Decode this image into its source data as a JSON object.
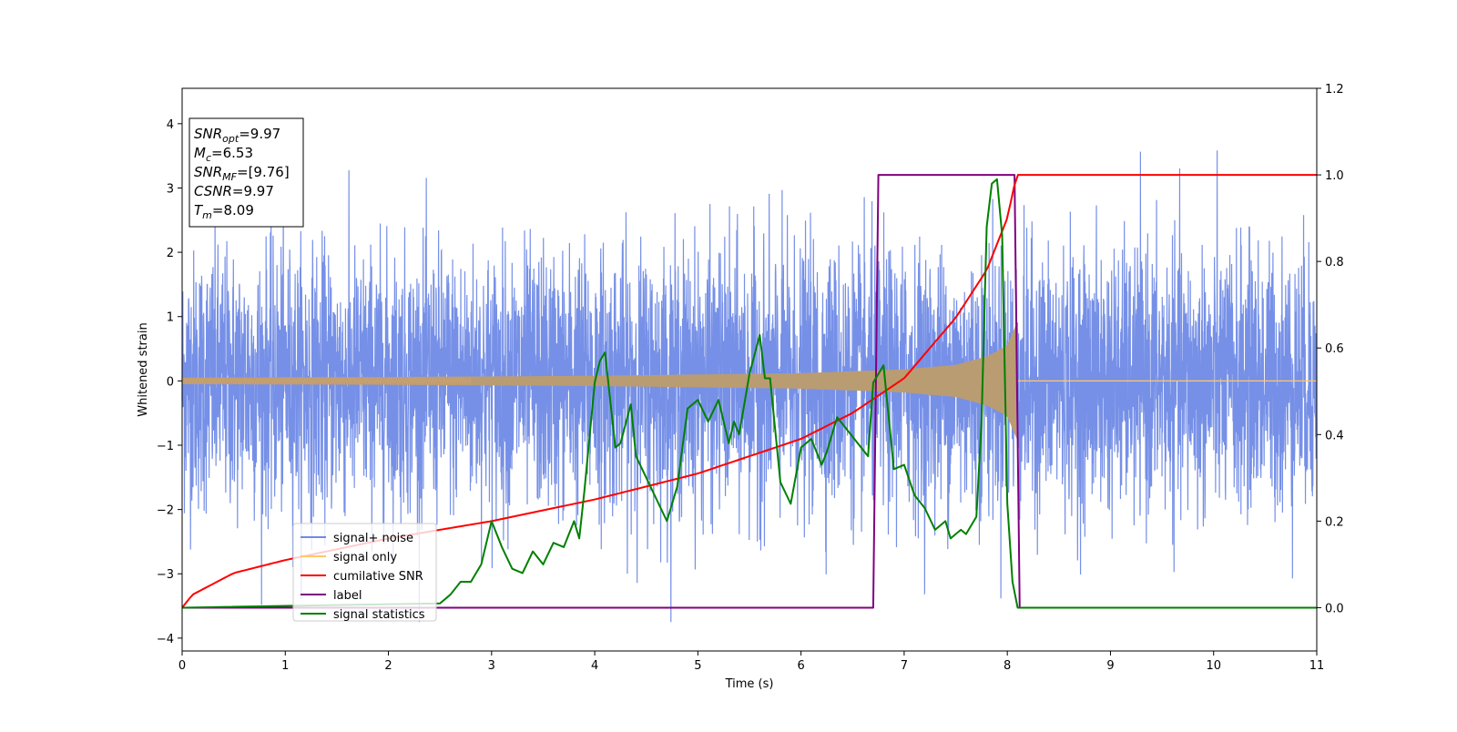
{
  "chart_data": {
    "type": "line",
    "xlabel": "Time (s)",
    "ylabel": "Whitened strain",
    "xlim": [
      0,
      11
    ],
    "ylim_left": [
      -4.2,
      4.55
    ],
    "ylim_right": [
      -0.1,
      1.2
    ],
    "x_ticks": [
      0,
      1,
      2,
      3,
      4,
      5,
      6,
      7,
      8,
      9,
      10,
      11
    ],
    "y_ticks_left": [
      -4,
      -3,
      -2,
      -1,
      0,
      1,
      2,
      3,
      4
    ],
    "y_ticks_right": [
      0.0,
      0.2,
      0.4,
      0.6,
      0.8,
      1.0,
      1.2
    ],
    "grid": false,
    "legend_position": "lower-left",
    "colors": {
      "signal_noise": "#6f8ae6",
      "signal_only": "#ffc766",
      "cumulative_snr": "#ff0000",
      "label": "#800080",
      "statistics": "#008000"
    },
    "series": [
      {
        "name": "signal+ noise",
        "axis": "left",
        "description_type": "gaussian noise, sigma≈1.0, 0–11 s"
      },
      {
        "name": "signal only",
        "axis": "left",
        "chirp_amplitude": {
          "x": [
            0,
            2,
            4,
            6,
            7,
            7.5,
            7.8,
            8.0,
            8.09
          ],
          "y": [
            0.05,
            0.06,
            0.08,
            0.12,
            0.18,
            0.25,
            0.38,
            0.55,
            0.9
          ]
        }
      },
      {
        "name": "cumilative SNR",
        "axis": "right",
        "x": [
          0,
          0.1,
          0.5,
          1,
          2,
          3,
          4,
          5,
          6,
          6.5,
          7,
          7.5,
          7.8,
          8.0,
          8.09,
          8.1,
          11
        ],
        "y": [
          0.0,
          0.03,
          0.08,
          0.11,
          0.16,
          0.2,
          0.25,
          0.31,
          0.39,
          0.45,
          0.53,
          0.67,
          0.78,
          0.9,
          1.0,
          1.0,
          1.0
        ]
      },
      {
        "name": "label",
        "axis": "right",
        "x": [
          0,
          6.7,
          6.75,
          8.07,
          8.12,
          11
        ],
        "y": [
          0,
          0,
          1,
          1,
          0,
          0
        ]
      },
      {
        "name": "signal statistics",
        "axis": "right",
        "x": [
          0,
          2.5,
          2.6,
          2.7,
          2.8,
          2.9,
          3.0,
          3.1,
          3.2,
          3.3,
          3.4,
          3.5,
          3.6,
          3.7,
          3.8,
          3.85,
          3.9,
          4.0,
          4.05,
          4.1,
          4.2,
          4.25,
          4.35,
          4.4,
          4.5,
          4.6,
          4.7,
          4.8,
          4.9,
          5.0,
          5.1,
          5.2,
          5.3,
          5.35,
          5.4,
          5.5,
          5.6,
          5.65,
          5.7,
          5.8,
          5.9,
          6.0,
          6.1,
          6.2,
          6.25,
          6.35,
          6.45,
          6.55,
          6.65,
          6.7,
          6.8,
          6.9,
          7.0,
          7.1,
          7.2,
          7.3,
          7.4,
          7.45,
          7.55,
          7.6,
          7.7,
          7.75,
          7.8,
          7.85,
          7.9,
          7.95,
          8.0,
          8.05,
          8.1,
          8.15,
          11
        ],
        "y": [
          0.0,
          0.01,
          0.03,
          0.06,
          0.06,
          0.1,
          0.2,
          0.14,
          0.09,
          0.08,
          0.13,
          0.1,
          0.15,
          0.14,
          0.2,
          0.16,
          0.27,
          0.52,
          0.57,
          0.59,
          0.37,
          0.38,
          0.47,
          0.35,
          0.3,
          0.25,
          0.2,
          0.28,
          0.46,
          0.48,
          0.43,
          0.48,
          0.38,
          0.43,
          0.4,
          0.54,
          0.63,
          0.53,
          0.53,
          0.29,
          0.24,
          0.37,
          0.39,
          0.33,
          0.36,
          0.44,
          0.41,
          0.38,
          0.35,
          0.52,
          0.56,
          0.32,
          0.33,
          0.26,
          0.23,
          0.18,
          0.2,
          0.16,
          0.18,
          0.17,
          0.21,
          0.43,
          0.88,
          0.98,
          0.99,
          0.86,
          0.24,
          0.06,
          0.0,
          0.0,
          0.0
        ]
      }
    ],
    "annotation": {
      "lines": [
        {
          "label": "SNR",
          "sub": "opt",
          "value": "=9.97"
        },
        {
          "label": "M",
          "sub": "c",
          "value": "=6.53"
        },
        {
          "label": "SNR",
          "sub": "MF",
          "value": "=[9.76]"
        },
        {
          "label": "CSNR",
          "sub": "",
          "value": "=9.97"
        },
        {
          "label": "T",
          "sub": "m",
          "value": "=8.09"
        }
      ]
    }
  }
}
